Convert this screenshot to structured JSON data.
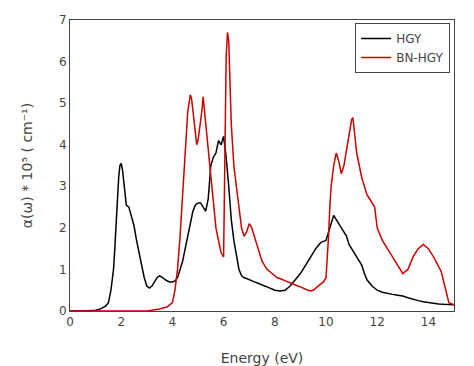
{
  "chart_data": {
    "type": "line",
    "title": "",
    "xlabel": "Energy (eV)",
    "ylabel": "α(ω) * 10⁵ ( cm⁻¹)",
    "xlim": [
      0,
      15
    ],
    "ylim": [
      0,
      7
    ],
    "xticks": [
      0,
      2,
      4,
      6,
      8,
      10,
      12,
      14
    ],
    "yticks": [
      0,
      1,
      2,
      3,
      4,
      5,
      6,
      7
    ],
    "grid": false,
    "legend": "upper right",
    "series": [
      {
        "name": "HGY",
        "color": "#000000",
        "x": [
          0.0,
          0.5,
          1.0,
          1.2,
          1.4,
          1.5,
          1.6,
          1.7,
          1.75,
          1.8,
          1.85,
          1.9,
          1.95,
          2.0,
          2.05,
          2.1,
          2.2,
          2.3,
          2.4,
          2.5,
          2.6,
          2.7,
          2.8,
          2.9,
          3.0,
          3.1,
          3.2,
          3.3,
          3.4,
          3.5,
          3.6,
          3.7,
          3.8,
          3.9,
          4.0,
          4.1,
          4.2,
          4.3,
          4.4,
          4.5,
          4.6,
          4.7,
          4.8,
          4.9,
          5.0,
          5.1,
          5.2,
          5.3,
          5.4,
          5.5,
          5.6,
          5.7,
          5.8,
          5.9,
          6.0,
          6.1,
          6.2,
          6.3,
          6.4,
          6.5,
          6.6,
          6.7,
          6.8,
          6.9,
          7.0,
          7.1,
          7.2,
          7.3,
          7.4,
          7.5,
          7.6,
          7.7,
          7.8,
          7.9,
          8.0,
          8.2,
          8.4,
          8.6,
          8.8,
          9.0,
          9.2,
          9.4,
          9.6,
          9.8,
          10.0,
          10.1,
          10.2,
          10.3,
          10.4,
          10.5,
          10.6,
          10.7,
          10.8,
          10.9,
          11.0,
          11.1,
          11.2,
          11.3,
          11.4,
          11.5,
          11.6,
          11.8,
          12.0,
          12.2,
          12.4,
          12.6,
          12.8,
          13.0,
          13.2,
          13.4,
          13.6,
          13.8,
          14.0,
          14.2,
          14.4,
          14.6,
          14.8,
          15.0
        ],
        "values": [
          0.0,
          0.0,
          0.02,
          0.05,
          0.12,
          0.2,
          0.5,
          1.0,
          1.5,
          2.2,
          2.8,
          3.2,
          3.5,
          3.55,
          3.4,
          3.1,
          2.55,
          2.5,
          2.3,
          2.05,
          1.7,
          1.4,
          1.1,
          0.8,
          0.6,
          0.55,
          0.6,
          0.7,
          0.8,
          0.85,
          0.8,
          0.75,
          0.72,
          0.7,
          0.7,
          0.72,
          0.8,
          1.0,
          1.2,
          1.5,
          1.8,
          2.1,
          2.4,
          2.55,
          2.6,
          2.6,
          2.5,
          2.4,
          2.7,
          3.5,
          3.7,
          3.8,
          4.1,
          4.0,
          4.2,
          3.7,
          3.0,
          2.2,
          1.7,
          1.35,
          1.0,
          0.85,
          0.8,
          0.78,
          0.75,
          0.72,
          0.7,
          0.68,
          0.65,
          0.63,
          0.6,
          0.58,
          0.55,
          0.52,
          0.5,
          0.48,
          0.5,
          0.6,
          0.75,
          0.9,
          1.1,
          1.3,
          1.5,
          1.65,
          1.7,
          1.9,
          2.1,
          2.3,
          2.2,
          2.1,
          2.0,
          1.9,
          1.8,
          1.6,
          1.5,
          1.4,
          1.3,
          1.2,
          1.1,
          0.9,
          0.75,
          0.6,
          0.5,
          0.45,
          0.42,
          0.4,
          0.38,
          0.36,
          0.32,
          0.28,
          0.25,
          0.22,
          0.2,
          0.18,
          0.17,
          0.16,
          0.15,
          0.15
        ]
      },
      {
        "name": "BN-HGY",
        "color": "#cc0000",
        "x": [
          0.0,
          0.5,
          1.0,
          1.5,
          2.0,
          2.5,
          3.0,
          3.2,
          3.5,
          3.8,
          4.0,
          4.1,
          4.2,
          4.3,
          4.4,
          4.5,
          4.6,
          4.65,
          4.7,
          4.75,
          4.8,
          4.85,
          4.9,
          4.95,
          5.0,
          5.05,
          5.1,
          5.15,
          5.2,
          5.3,
          5.4,
          5.5,
          5.6,
          5.7,
          5.8,
          5.9,
          6.0,
          6.05,
          6.1,
          6.15,
          6.2,
          6.25,
          6.3,
          6.4,
          6.5,
          6.6,
          6.7,
          6.8,
          6.9,
          7.0,
          7.1,
          7.2,
          7.3,
          7.4,
          7.5,
          7.6,
          7.7,
          7.8,
          7.9,
          8.0,
          8.1,
          8.2,
          8.3,
          8.4,
          8.5,
          8.6,
          8.7,
          8.8,
          8.9,
          9.0,
          9.1,
          9.2,
          9.3,
          9.4,
          9.5,
          9.6,
          9.7,
          9.8,
          9.9,
          10.0,
          10.05,
          10.1,
          10.15,
          10.2,
          10.3,
          10.4,
          10.5,
          10.6,
          10.7,
          10.8,
          10.9,
          11.0,
          11.05,
          11.1,
          11.15,
          11.2,
          11.3,
          11.4,
          11.5,
          11.6,
          11.7,
          11.8,
          11.9,
          12.0,
          12.2,
          12.4,
          12.6,
          12.8,
          13.0,
          13.2,
          13.4,
          13.6,
          13.8,
          14.0,
          14.2,
          14.5,
          14.8,
          15.0
        ],
        "values": [
          0.0,
          0.0,
          0.0,
          0.0,
          0.0,
          0.0,
          0.0,
          0.02,
          0.05,
          0.1,
          0.2,
          0.5,
          1.0,
          1.8,
          2.8,
          3.8,
          4.8,
          5.0,
          5.2,
          5.1,
          4.8,
          4.5,
          4.2,
          4.0,
          4.1,
          4.3,
          4.5,
          4.8,
          5.15,
          4.5,
          3.8,
          3.2,
          2.5,
          2.0,
          1.7,
          1.4,
          1.3,
          3.5,
          6.1,
          6.7,
          6.5,
          5.5,
          4.5,
          3.5,
          3.0,
          2.5,
          2.0,
          1.8,
          1.9,
          2.1,
          2.0,
          1.8,
          1.6,
          1.4,
          1.2,
          1.1,
          1.0,
          0.95,
          0.9,
          0.85,
          0.8,
          0.78,
          0.75,
          0.72,
          0.7,
          0.68,
          0.65,
          0.62,
          0.6,
          0.58,
          0.55,
          0.52,
          0.5,
          0.48,
          0.5,
          0.55,
          0.6,
          0.65,
          0.7,
          0.8,
          1.2,
          1.8,
          2.5,
          3.0,
          3.5,
          3.8,
          3.6,
          3.3,
          3.5,
          3.9,
          4.2,
          4.6,
          4.65,
          4.4,
          4.1,
          3.8,
          3.5,
          3.2,
          3.0,
          2.8,
          2.7,
          2.6,
          2.5,
          2.0,
          1.7,
          1.5,
          1.3,
          1.1,
          0.9,
          1.0,
          1.3,
          1.5,
          1.6,
          1.5,
          1.3,
          0.95,
          0.2,
          0.15
        ]
      }
    ]
  }
}
